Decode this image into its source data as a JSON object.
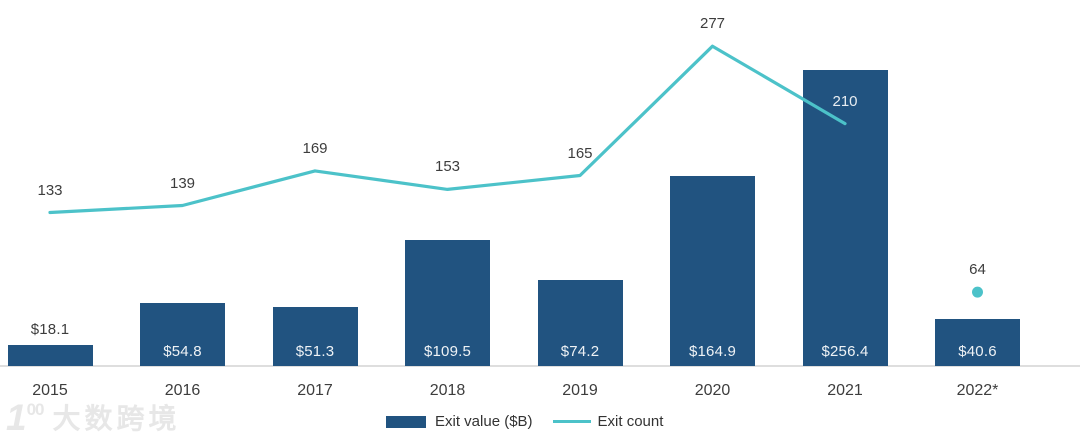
{
  "chart_data": {
    "type": "bar",
    "combo": "bar+line",
    "categories": [
      "2015",
      "2016",
      "2017",
      "2018",
      "2019",
      "2020",
      "2021",
      "2022*"
    ],
    "series": [
      {
        "name": "Exit value ($B)",
        "type": "bar",
        "color": "#215380",
        "values": [
          18.1,
          54.8,
          51.3,
          109.5,
          74.2,
          164.9,
          256.4,
          40.6
        ],
        "data_labels": [
          "$18.1",
          "$54.8",
          "$51.3",
          "$109.5",
          "$74.2",
          "$164.9",
          "$256.4",
          "$40.6"
        ]
      },
      {
        "name": "Exit count",
        "type": "line",
        "color": "#4cc2c9",
        "values": [
          133,
          139,
          169,
          153,
          165,
          277,
          210,
          64
        ],
        "line_through_categories": [
          "2015",
          "2016",
          "2017",
          "2018",
          "2019",
          "2020",
          "2021"
        ],
        "isolated_point": {
          "category": "2022*",
          "value": 64
        }
      }
    ],
    "ylim": [
      0,
      300
    ],
    "grid": false,
    "legend_position": "bottom-center",
    "xlabel": "",
    "ylabel": ""
  },
  "legend": {
    "items": [
      {
        "label": "Exit value ($B)"
      },
      {
        "label": "Exit count"
      }
    ]
  },
  "watermark": {
    "logo_main": "1",
    "logo_sup": "00",
    "text": "大数跨境"
  },
  "colors": {
    "bar": "#215380",
    "line": "#4cc2c9",
    "text_dark": "#3d3d3d",
    "label_light": "#eef2f5",
    "axis_line": "#dedede",
    "watermark": "#e7e7e7"
  }
}
